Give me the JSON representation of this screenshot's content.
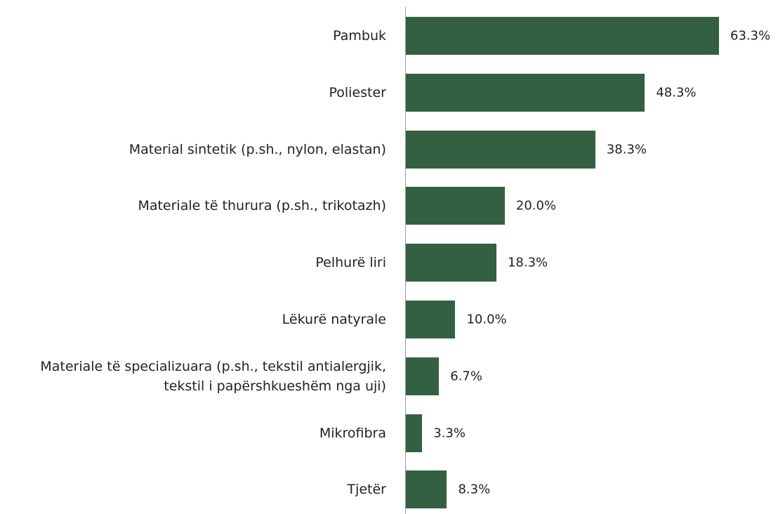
{
  "chart_data": {
    "type": "bar",
    "orientation": "horizontal",
    "color": "#346042",
    "categories": [
      "Pambuk",
      "Poliester",
      "Material sintetik (p.sh., nylon, elastan)",
      "Materiale të thurura (p.sh., trikotazh)",
      "Pelhurë liri",
      "Lëkurë natyrale",
      "Materiale të specializuara (p.sh., tekstil antialergjik, tekstil i papërshkueshëm nga uji)",
      "Mikrofibra",
      "Tjetër"
    ],
    "values": [
      63.3,
      48.3,
      38.3,
      20.0,
      18.3,
      10.0,
      6.7,
      3.3,
      8.3
    ],
    "value_labels": [
      "63.3%",
      "48.3%",
      "38.3%",
      "20.0%",
      "18.3%",
      "10.0%",
      "6.7%",
      "3.3%",
      "8.3%"
    ]
  }
}
